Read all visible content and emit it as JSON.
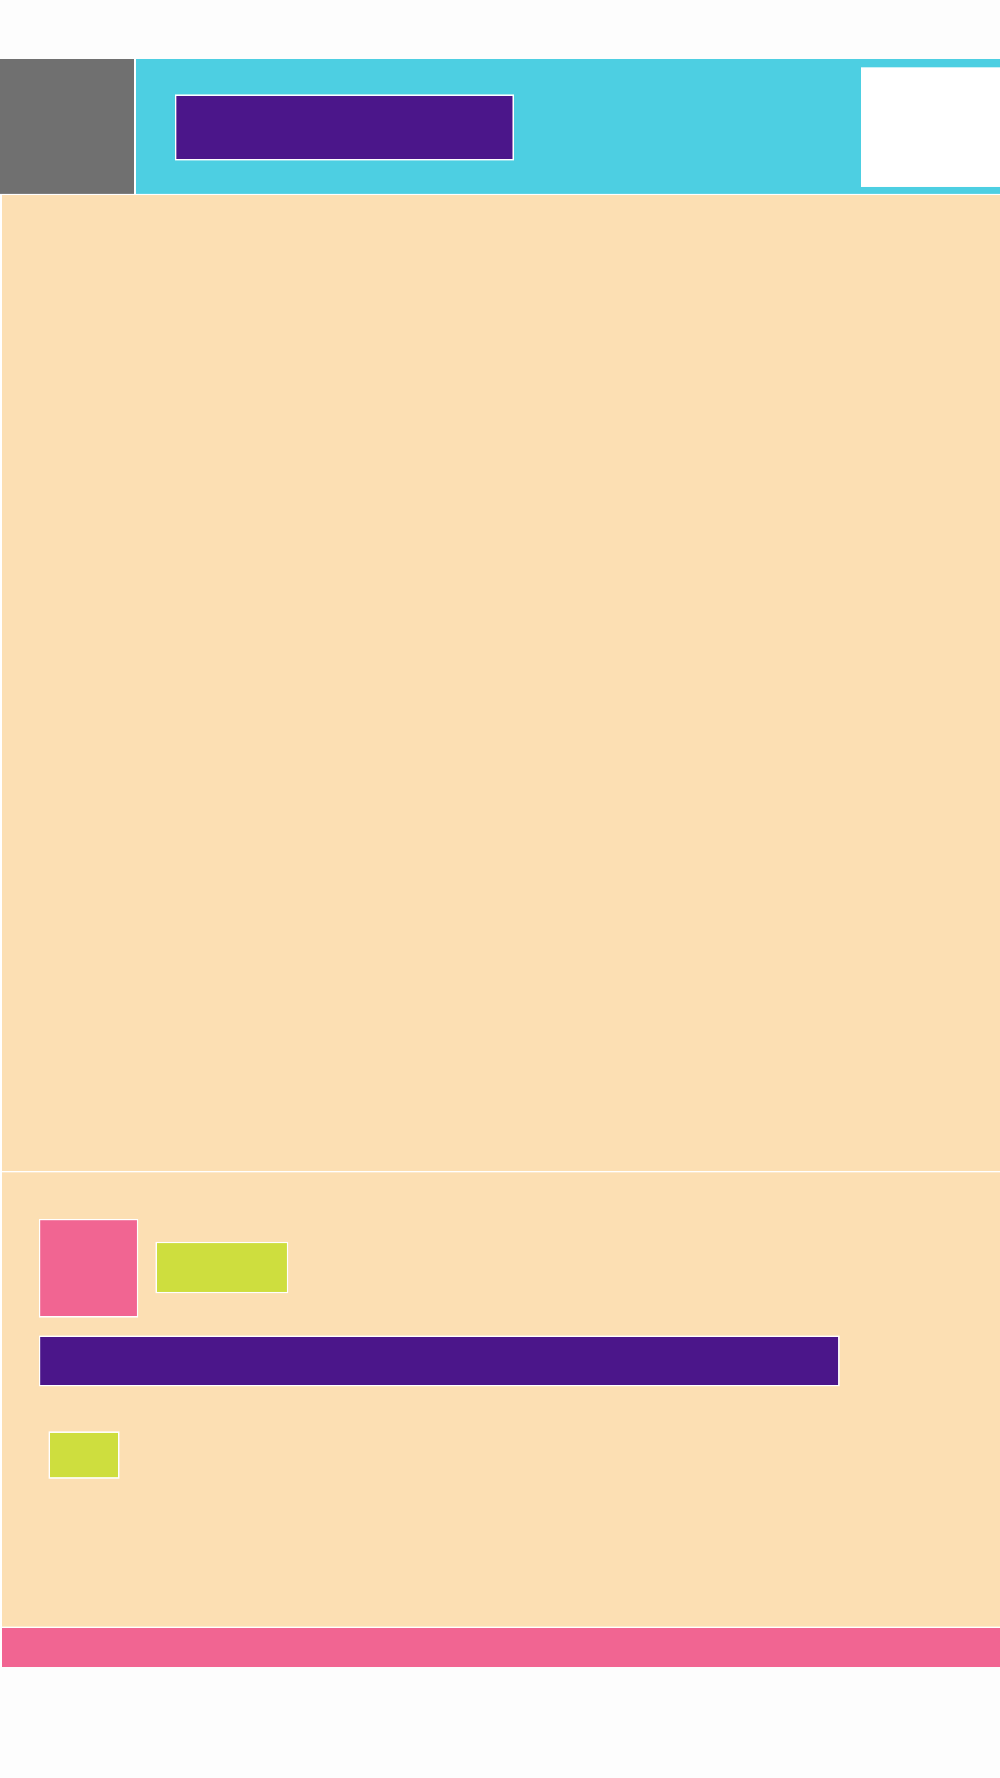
{
  "colors": {
    "page_background": "#fdfdfd",
    "header_background": "#4dcfe2",
    "menu_block": "#707070",
    "title_block": "#4b168a",
    "header_slot": "#ffffff",
    "content_background": "#fcdfb3",
    "avatar_block": "#f16592",
    "label_block": "#cede3e",
    "bar_block": "#4b168a",
    "small_button": "#cede3e",
    "footer_strip": "#f16592",
    "divider": "#ffffff"
  }
}
